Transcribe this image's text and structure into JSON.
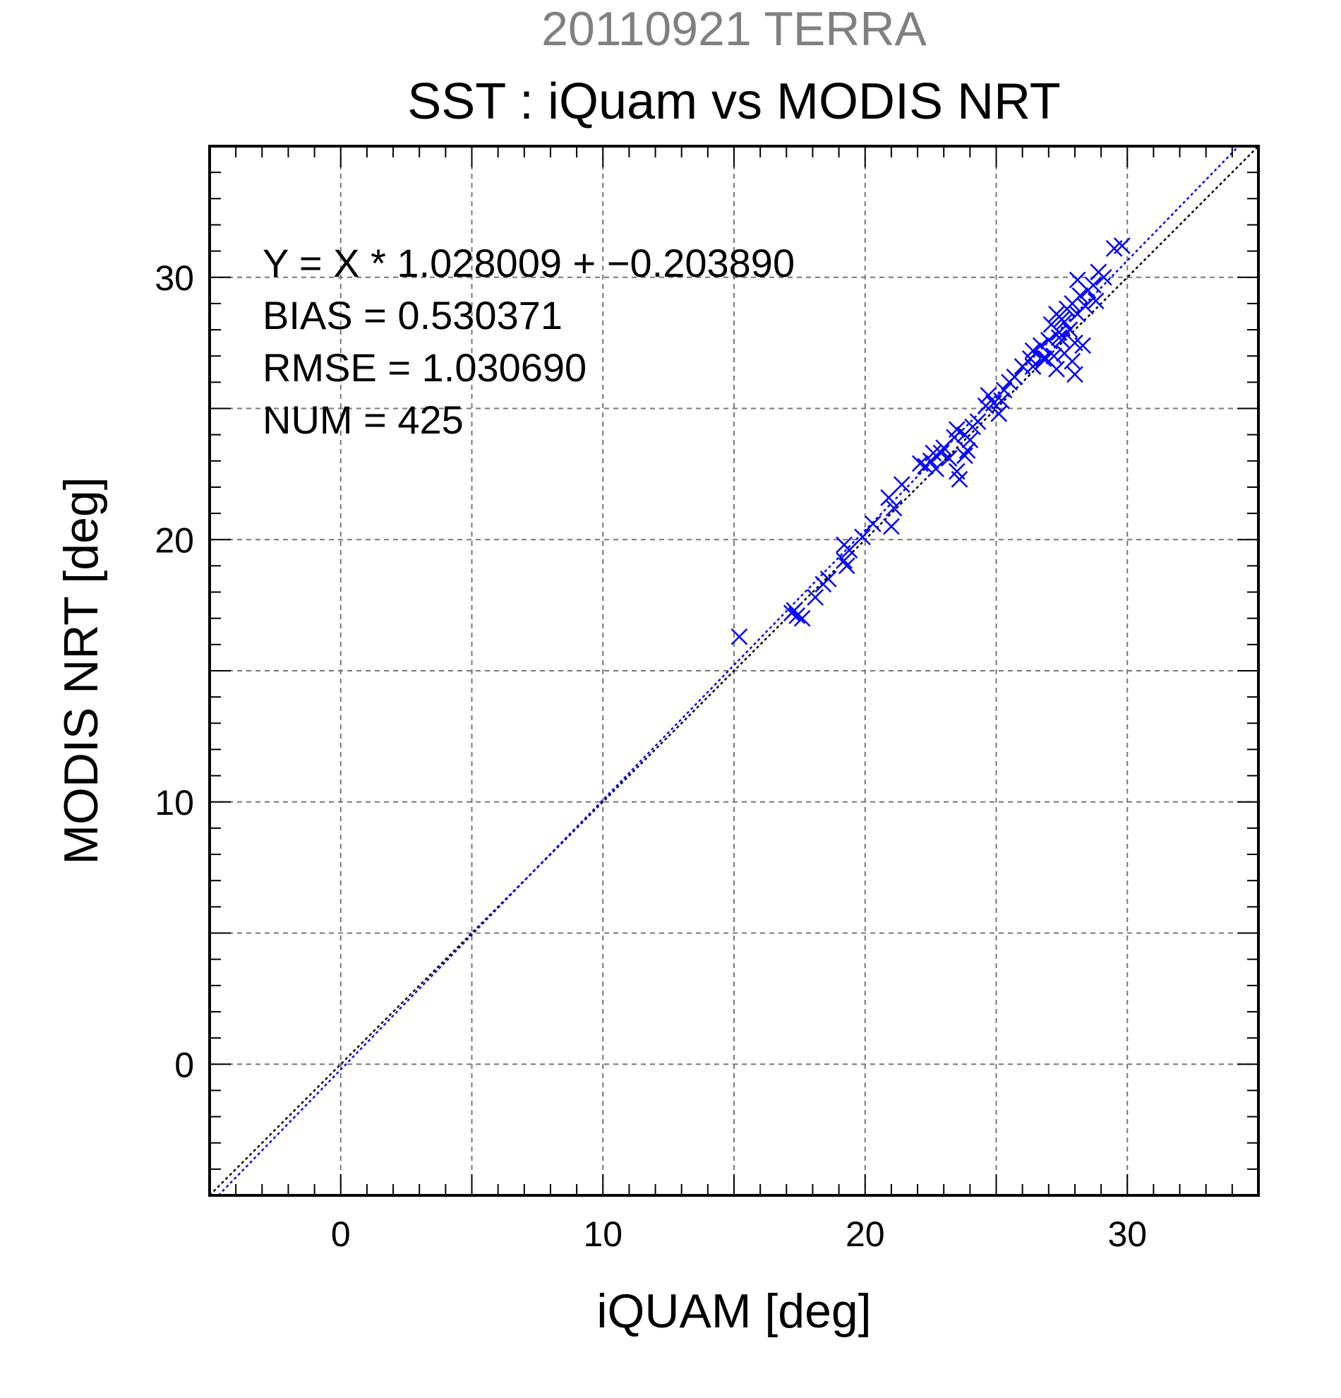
{
  "chart_data": {
    "type": "scatter",
    "title_top": "20110921 TERRA",
    "title": "SST : iQuam vs MODIS NRT",
    "xlabel": "iQUAM [deg]",
    "ylabel": "MODIS NRT [deg]",
    "xlim": [
      -5,
      35
    ],
    "ylim": [
      -5,
      35
    ],
    "xticks": [
      "0",
      "10",
      "20",
      "30"
    ],
    "yticks": [
      "0",
      "10",
      "20",
      "30"
    ],
    "grid": true,
    "annotations": [
      "Y = X * 1.028009 + −0.203890",
      "BIAS = 0.530371",
      "RMSE = 1.030690",
      "NUM = 425"
    ],
    "lines": [
      {
        "type": "identity",
        "color": "#000000",
        "style": "dotted"
      },
      {
        "type": "regression",
        "slope": 1.028009,
        "intercept": -0.20389,
        "color": "#0000ff",
        "style": "dotted"
      }
    ],
    "marker": "x",
    "marker_color": "#0000ff",
    "points": [
      [
        15.2,
        16.3
      ],
      [
        17.2,
        17.2
      ],
      [
        17.4,
        17.1
      ],
      [
        17.6,
        17.0
      ],
      [
        17.3,
        17.3
      ],
      [
        18.1,
        17.8
      ],
      [
        18.4,
        18.3
      ],
      [
        18.6,
        18.5
      ],
      [
        19.2,
        19.2
      ],
      [
        19.3,
        19.0
      ],
      [
        19.4,
        19.6
      ],
      [
        19.2,
        19.8
      ],
      [
        19.9,
        20.1
      ],
      [
        20.3,
        20.6
      ],
      [
        21.0,
        20.5
      ],
      [
        21.1,
        21.2
      ],
      [
        20.9,
        21.6
      ],
      [
        21.4,
        22.1
      ],
      [
        22.1,
        22.9
      ],
      [
        22.3,
        22.8
      ],
      [
        22.5,
        23.0
      ],
      [
        22.7,
        22.7
      ],
      [
        22.9,
        23.3
      ],
      [
        23.0,
        23.5
      ],
      [
        23.2,
        23.1
      ],
      [
        23.4,
        23.9
      ],
      [
        23.5,
        22.6
      ],
      [
        23.6,
        22.3
      ],
      [
        23.5,
        24.2
      ],
      [
        23.8,
        24.0
      ],
      [
        23.9,
        23.4
      ],
      [
        24.1,
        24.3
      ],
      [
        23.8,
        23.2
      ],
      [
        24.3,
        24.5
      ],
      [
        24.6,
        25.1
      ],
      [
        24.7,
        25.5
      ],
      [
        24.9,
        25.2
      ],
      [
        25.1,
        24.8
      ],
      [
        25.2,
        25.3
      ],
      [
        25.3,
        25.7
      ],
      [
        25.5,
        26.0
      ],
      [
        25.7,
        26.2
      ],
      [
        26.0,
        26.6
      ],
      [
        26.3,
        26.9
      ],
      [
        26.4,
        27.2
      ],
      [
        26.7,
        27.4
      ],
      [
        26.8,
        26.9
      ],
      [
        27.0,
        27.6
      ],
      [
        27.1,
        28.2
      ],
      [
        27.2,
        27.0
      ],
      [
        27.3,
        28.6
      ],
      [
        27.4,
        27.9
      ],
      [
        27.5,
        28.4
      ],
      [
        27.6,
        27.1
      ],
      [
        27.7,
        28.8
      ],
      [
        27.5,
        27.6
      ],
      [
        27.8,
        28.0
      ],
      [
        27.9,
        29.0
      ],
      [
        28.0,
        26.3
      ],
      [
        28.0,
        27.5
      ],
      [
        28.1,
        28.6
      ],
      [
        28.2,
        29.3
      ],
      [
        28.4,
        28.9
      ],
      [
        28.5,
        29.5
      ],
      [
        28.7,
        29.7
      ],
      [
        28.8,
        29.1
      ],
      [
        28.9,
        30.2
      ],
      [
        29.1,
        30.0
      ],
      [
        29.5,
        31.1
      ],
      [
        29.8,
        31.2
      ],
      [
        28.3,
        27.4
      ],
      [
        27.9,
        26.8
      ],
      [
        27.3,
        26.5
      ],
      [
        26.9,
        26.9
      ],
      [
        27.4,
        27.7
      ],
      [
        27.6,
        28.3
      ],
      [
        28.1,
        29.9
      ],
      [
        26.4,
        26.6
      ],
      [
        24.0,
        23.8
      ],
      [
        22.6,
        23.3
      ]
    ]
  }
}
